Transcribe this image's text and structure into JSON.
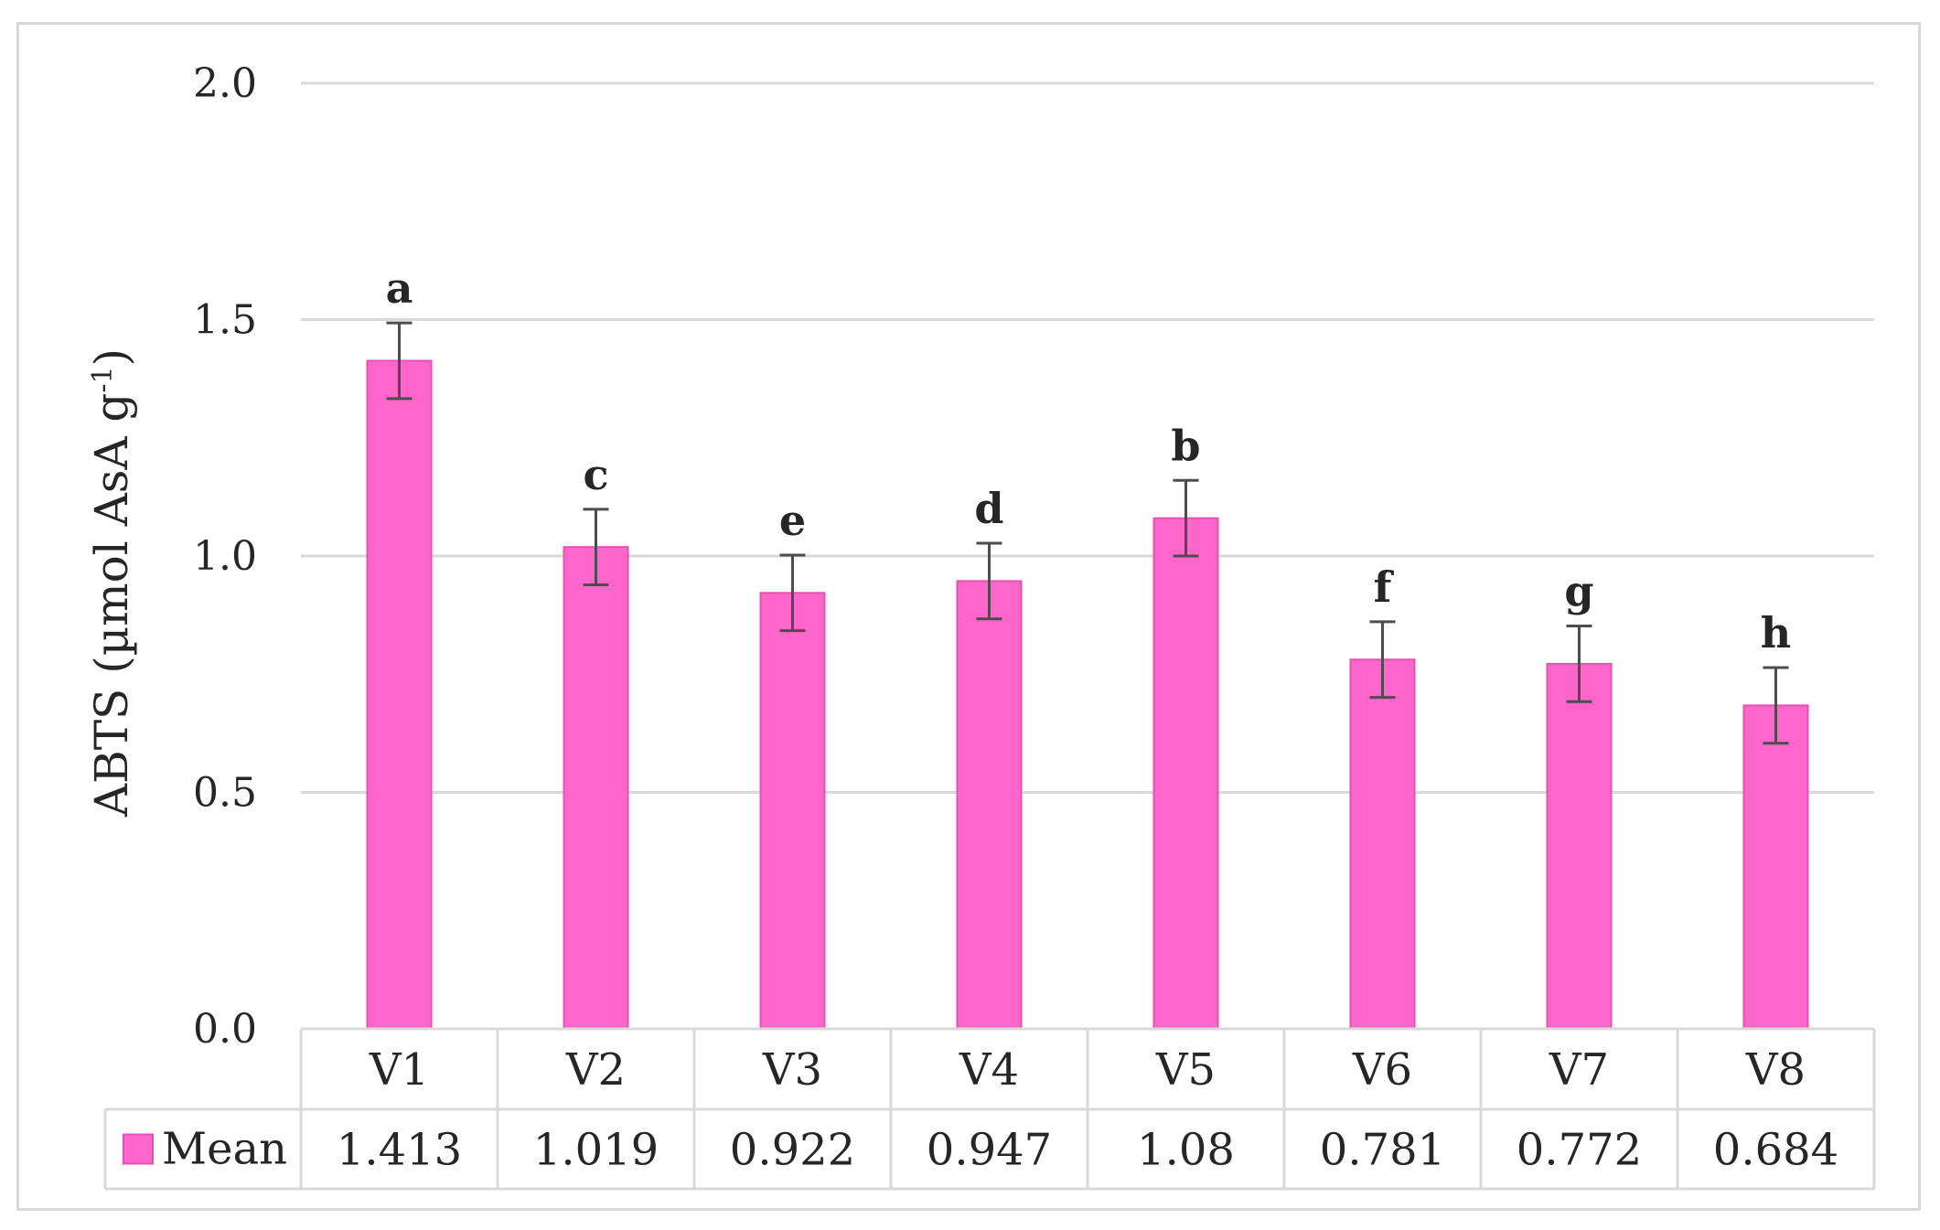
{
  "chart_data": {
    "type": "bar",
    "categories": [
      "V1",
      "V2",
      "V3",
      "V4",
      "V5",
      "V6",
      "V7",
      "V8"
    ],
    "series": [
      {
        "name": "Mean",
        "values": [
          1.413,
          1.019,
          0.922,
          0.947,
          1.08,
          0.781,
          0.772,
          0.684
        ],
        "value_labels": [
          "1.413",
          "1.019",
          "0.922",
          "0.947",
          "1.08",
          "0.781",
          "0.772",
          "0.684"
        ],
        "error": [
          0.08,
          0.08,
          0.08,
          0.08,
          0.08,
          0.08,
          0.08,
          0.08
        ],
        "significance_letters": [
          "a",
          "c",
          "e",
          "d",
          "b",
          "f",
          "g",
          "h"
        ],
        "color": "#ff66cc"
      }
    ],
    "ylabel": {
      "main": "ABTS (µmol  AsA g",
      "superscript": "-1",
      "close": ")"
    },
    "ylim": [
      0,
      2.0
    ],
    "yticks": [
      0.0,
      0.5,
      1.0,
      1.5,
      2.0
    ],
    "ytick_labels": [
      "0.0",
      "0.5",
      "1.0",
      "1.5",
      "2.0"
    ],
    "grid": true,
    "legend_position": "data-table-left",
    "data_table": true
  },
  "colors": {
    "bar_fill": "#ff66cc",
    "bar_stroke": "#e84fb3",
    "gridline": "#d9d9d9",
    "error_bar": "#4d4d4d",
    "text": "#262626",
    "frame": "#d9d9d9"
  }
}
